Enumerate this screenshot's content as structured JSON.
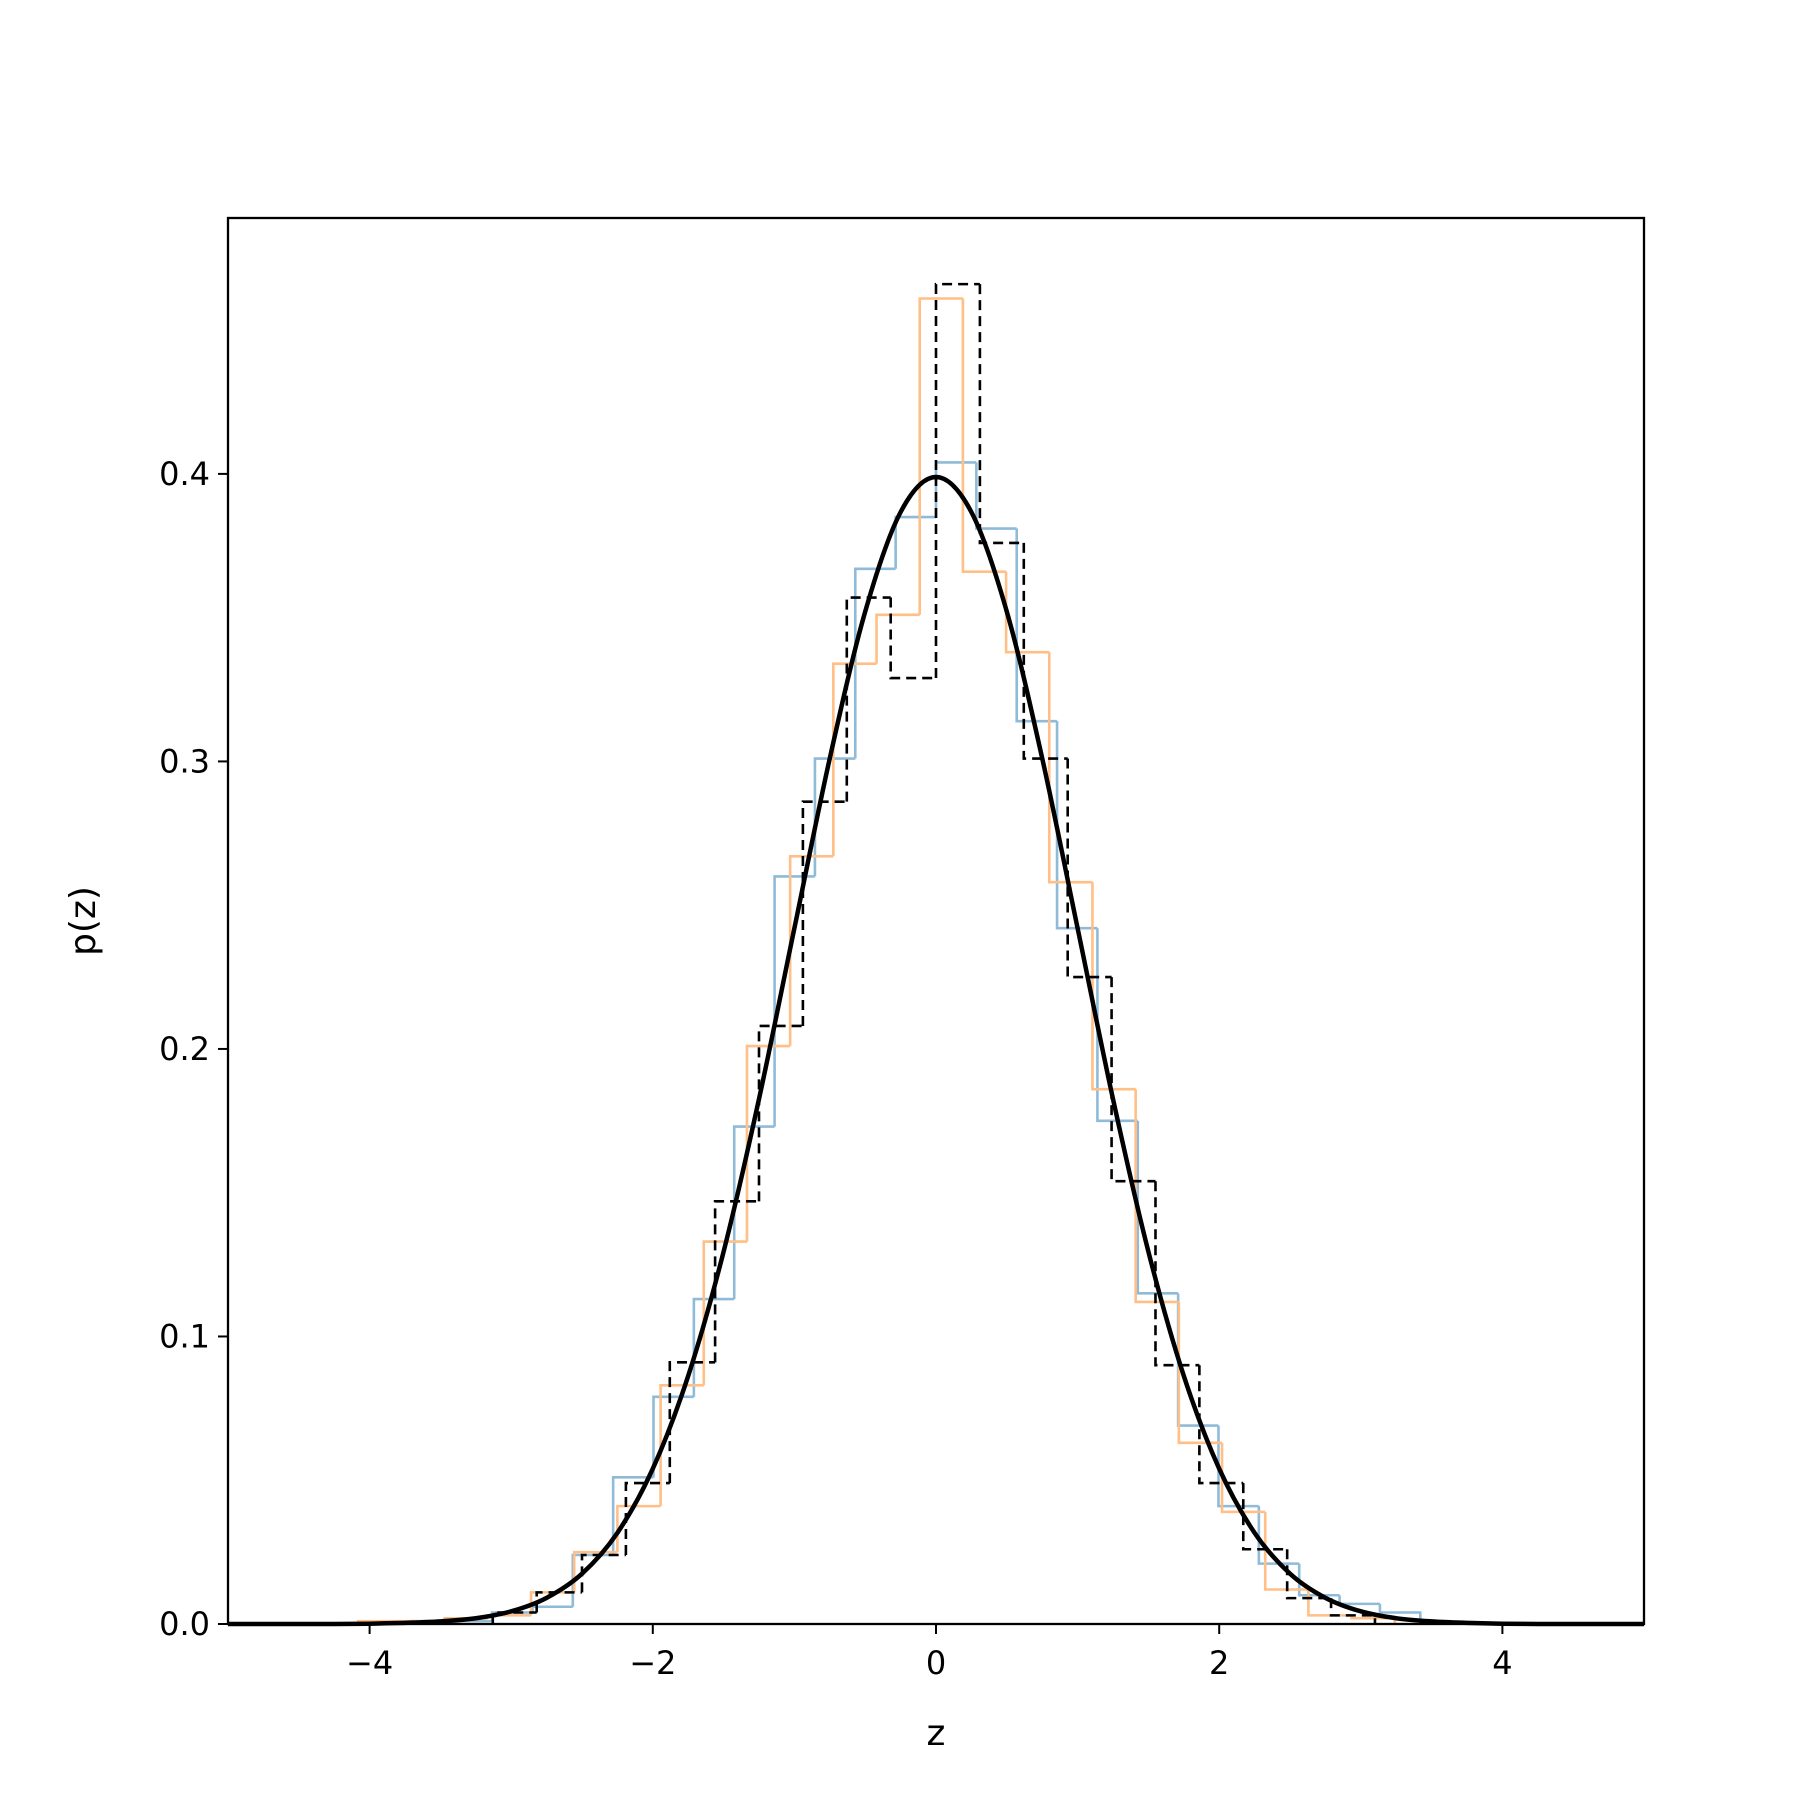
{
  "chart_data": {
    "type": "histogram",
    "xlabel": "z",
    "ylabel": "p(z)",
    "xlim": [
      -5,
      5
    ],
    "ylim": [
      0,
      0.489
    ],
    "xticks": [
      {
        "value": -4,
        "label": "−4"
      },
      {
        "value": -2,
        "label": "−2"
      },
      0,
      2,
      4
    ],
    "yticks": [
      {
        "value": 0,
        "label": "0.0"
      },
      0.1,
      0.2,
      0.3,
      0.4
    ],
    "series": [
      {
        "type": "histogram",
        "color": "#8fbbd9",
        "linestyle": "solid",
        "bins": [
          -3.705,
          -3.42,
          -3.135,
          -2.85,
          -2.565,
          -2.28,
          -1.995,
          -1.71,
          -1.425,
          -1.14,
          -0.855,
          -0.57,
          -0.285,
          0,
          0.285,
          0.57,
          0.855,
          1.14,
          1.425,
          1.71,
          1.995,
          2.28,
          2.565,
          2.85,
          3.135,
          3.42
        ],
        "values": [
          0.001,
          0.001,
          0.004,
          0.006,
          0.024,
          0.051,
          0.079,
          0.113,
          0.173,
          0.26,
          0.301,
          0.367,
          0.385,
          0.404,
          0.381,
          0.314,
          0.242,
          0.175,
          0.115,
          0.069,
          0.041,
          0.021,
          0.01,
          0.007,
          0.004
        ]
      },
      {
        "type": "histogram",
        "color": "#ffbf86",
        "linestyle": "solid",
        "bins": [
          -4.08,
          -3.775,
          -3.47,
          -3.165,
          -2.86,
          -2.555,
          -2.25,
          -1.945,
          -1.64,
          -1.335,
          -1.03,
          -0.725,
          -0.42,
          -0.115,
          0.19,
          0.495,
          0.8,
          1.105,
          1.41,
          1.715,
          2.02,
          2.325,
          2.63,
          2.935,
          3.24
        ],
        "values": [
          0.001,
          0.001,
          0.002,
          0.003,
          0.011,
          0.025,
          0.041,
          0.083,
          0.133,
          0.201,
          0.267,
          0.334,
          0.351,
          0.461,
          0.366,
          0.338,
          0.258,
          0.186,
          0.112,
          0.063,
          0.039,
          0.012,
          0.003,
          0.002
        ]
      },
      {
        "type": "histogram",
        "color": "#000000",
        "linestyle": "dashed",
        "bins": [
          -3.13,
          -2.82,
          -2.5,
          -2.19,
          -1.88,
          -1.56,
          -1.25,
          -0.94,
          -0.63,
          -0.32,
          0,
          0.31,
          0.62,
          0.93,
          1.24,
          1.55,
          1.86,
          2.17,
          2.48,
          2.79,
          3.1
        ],
        "values": [
          0.004,
          0.011,
          0.024,
          0.049,
          0.091,
          0.147,
          0.208,
          0.286,
          0.357,
          0.329,
          0.466,
          0.376,
          0.301,
          0.225,
          0.154,
          0.09,
          0.049,
          0.026,
          0.009,
          0.003
        ]
      },
      {
        "type": "line",
        "color": "#000000",
        "linestyle": "solid",
        "x": [
          -5,
          -4.75,
          -4.5,
          -4.25,
          -4,
          -3.75,
          -3.5,
          -3.25,
          -3,
          -2.75,
          -2.5,
          -2.25,
          -2,
          -1.75,
          -1.5,
          -1.25,
          -1,
          -0.75,
          -0.5,
          -0.25,
          0,
          0.25,
          0.5,
          0.75,
          1,
          1.25,
          1.5,
          1.75,
          2,
          2.25,
          2.5,
          2.75,
          3,
          3.25,
          3.5,
          3.75,
          4,
          4.25,
          4.5,
          4.75,
          5
        ],
        "values": [
          0,
          0,
          0,
          0,
          0.0001,
          0.0004,
          0.0009,
          0.002,
          0.0044,
          0.0091,
          0.0175,
          0.0317,
          0.054,
          0.0863,
          0.1295,
          0.1826,
          0.242,
          0.3011,
          0.3521,
          0.3867,
          0.3989,
          0.3867,
          0.3521,
          0.3011,
          0.242,
          0.1826,
          0.1295,
          0.0863,
          0.054,
          0.0317,
          0.0175,
          0.0091,
          0.0044,
          0.002,
          0.0009,
          0.0004,
          0.0001,
          0,
          0,
          0,
          0
        ]
      }
    ]
  }
}
